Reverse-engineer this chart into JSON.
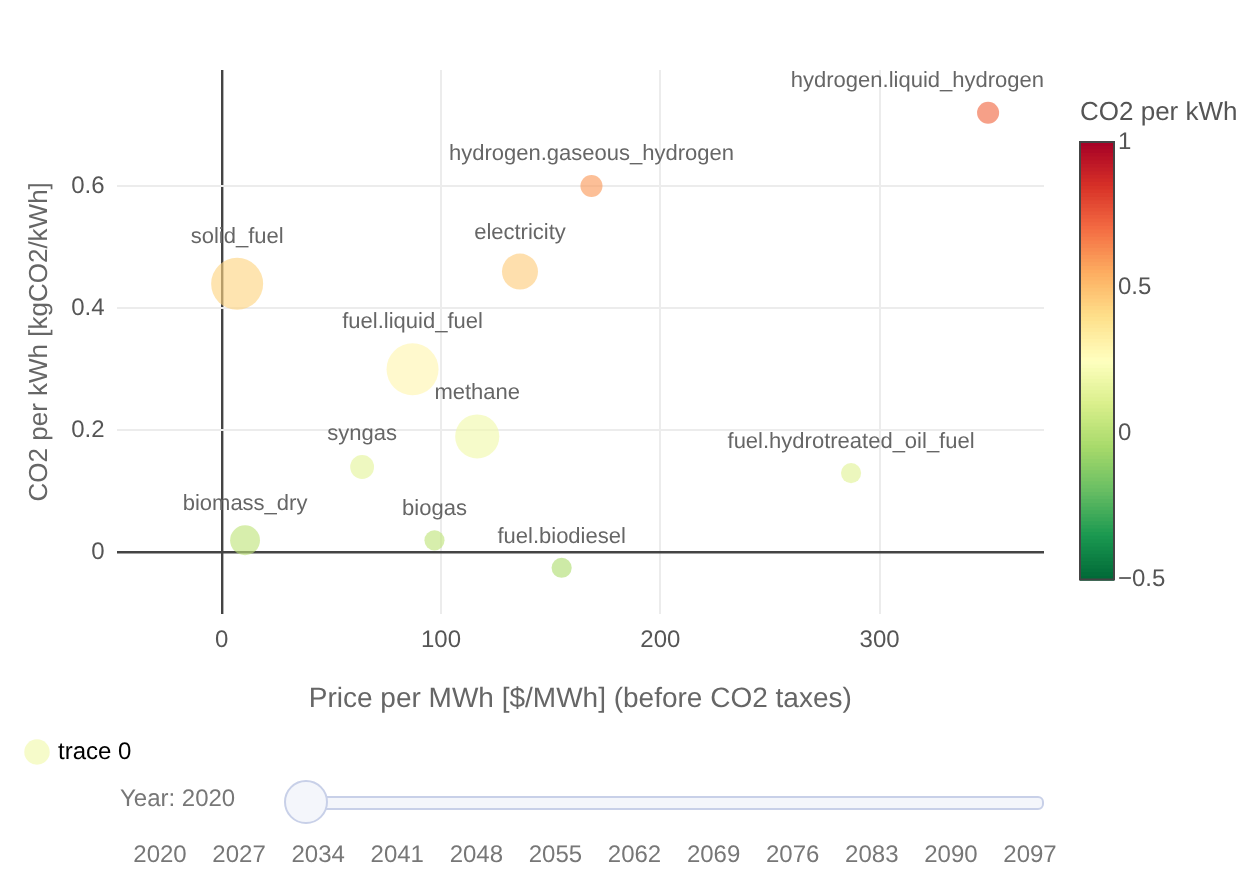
{
  "chart_data": {
    "type": "bubble",
    "xlabel": "Price per MWh [$/MWh] (before CO2 taxes)",
    "ylabel": "CO2 per kWh [kgCO2/kWh]",
    "clabel": "CO2 per kWh",
    "xlim": [
      -48,
      375
    ],
    "ylim": [
      -0.1,
      0.79
    ],
    "xticks": [
      0,
      100,
      200,
      300
    ],
    "yticks": [
      0,
      0.2,
      0.4,
      0.6
    ],
    "clim": [
      -0.5,
      1
    ],
    "cticks": [
      {
        "value": -0.5,
        "label": "−0.5"
      },
      0,
      0.5,
      1
    ],
    "grid": true,
    "legend": "bottom left",
    "series": [
      {
        "name": "trace 0",
        "x": [
          349.5,
          168.6,
          7,
          136,
          87,
          116.5,
          64,
          10.6,
          97,
          155,
          287
        ],
        "values": [
          0.72,
          0.6,
          0.44,
          0.46,
          0.3,
          0.19,
          0.14,
          0.02,
          0.02,
          -0.025,
          0.13
        ],
        "cvalues": [
          0.72,
          0.6,
          0.44,
          0.46,
          0.3,
          0.19,
          0.14,
          0.02,
          0.02,
          -0.025,
          0.13
        ],
        "sizes": [
          0.18,
          0.18,
          1,
          0.48,
          1,
          0.72,
          0.21,
          0.33,
          0.15,
          0.15,
          0.15
        ]
      }
    ],
    "annotations": [
      {
        "text": "hydrogen.liquid_hydrogen",
        "x": 349.5,
        "y": 0.72
      },
      {
        "text": "hydrogen.gaseous_hydrogen",
        "x": 168.6,
        "y": 0.6
      },
      {
        "text": "solid_fuel",
        "x": 7,
        "y": 0.44
      },
      {
        "text": "electricity",
        "x": 136,
        "y": 0.46
      },
      {
        "text": "fuel.liquid_fuel",
        "x": 87,
        "y": 0.3
      },
      {
        "text": "methane",
        "x": 116.5,
        "y": 0.19
      },
      {
        "text": "syngas",
        "x": 64,
        "y": 0.14
      },
      {
        "text": "biomass_dry",
        "x": 10.6,
        "y": 0.02
      },
      {
        "text": "biogas",
        "x": 97,
        "y": 0.02
      },
      {
        "text": "fuel.biodiesel",
        "x": 155,
        "y": -0.025
      },
      {
        "text": "fuel.hydrotreated_oil_fuel",
        "x": 287,
        "y": 0.13
      },
      "Year: 2020",
      "2020",
      "2027",
      "2034",
      "2041",
      "2048",
      "2055",
      "2062",
      "2069",
      "2076",
      "2083",
      "2090",
      "2097"
    ]
  }
}
